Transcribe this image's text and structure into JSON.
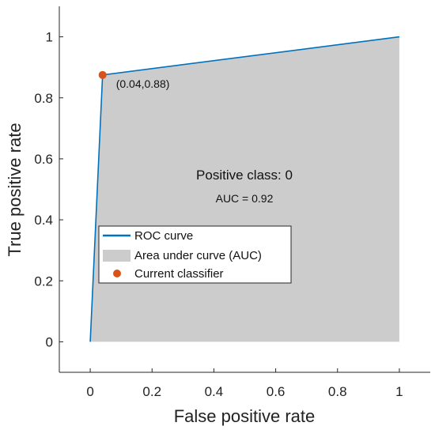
{
  "chart_data": {
    "type": "line",
    "xlabel": "False positive rate",
    "ylabel": "True positive rate",
    "xlim": [
      -0.1,
      1.1
    ],
    "ylim": [
      -0.1,
      1.1
    ],
    "xticks": [
      0,
      0.2,
      0.4,
      0.6,
      0.8,
      1
    ],
    "yticks": [
      0,
      0.2,
      0.4,
      0.6,
      0.8,
      1
    ],
    "xtick_labels": [
      "0",
      "0.2",
      "0.4",
      "0.6",
      "0.8",
      "1"
    ],
    "ytick_labels": [
      "0",
      "0.2",
      "0.4",
      "0.6",
      "0.8",
      "1"
    ],
    "grid": false,
    "roc_curve": {
      "name": "ROC curve",
      "color": "#0072BD",
      "x": [
        0,
        0.04,
        1
      ],
      "y": [
        0,
        0.875,
        1
      ]
    },
    "auc_area": {
      "name": "Area under curve (AUC)",
      "color": "#cccccc"
    },
    "current_classifier": {
      "name": "Current classifier",
      "color": "#D95319",
      "x": 0.04,
      "y": 0.875,
      "label": "(0.04,0.88)"
    },
    "annotations": {
      "class_text": "Positive class: 0",
      "auc_text": "AUC = 0.92"
    },
    "legend_position": "lower-left"
  }
}
